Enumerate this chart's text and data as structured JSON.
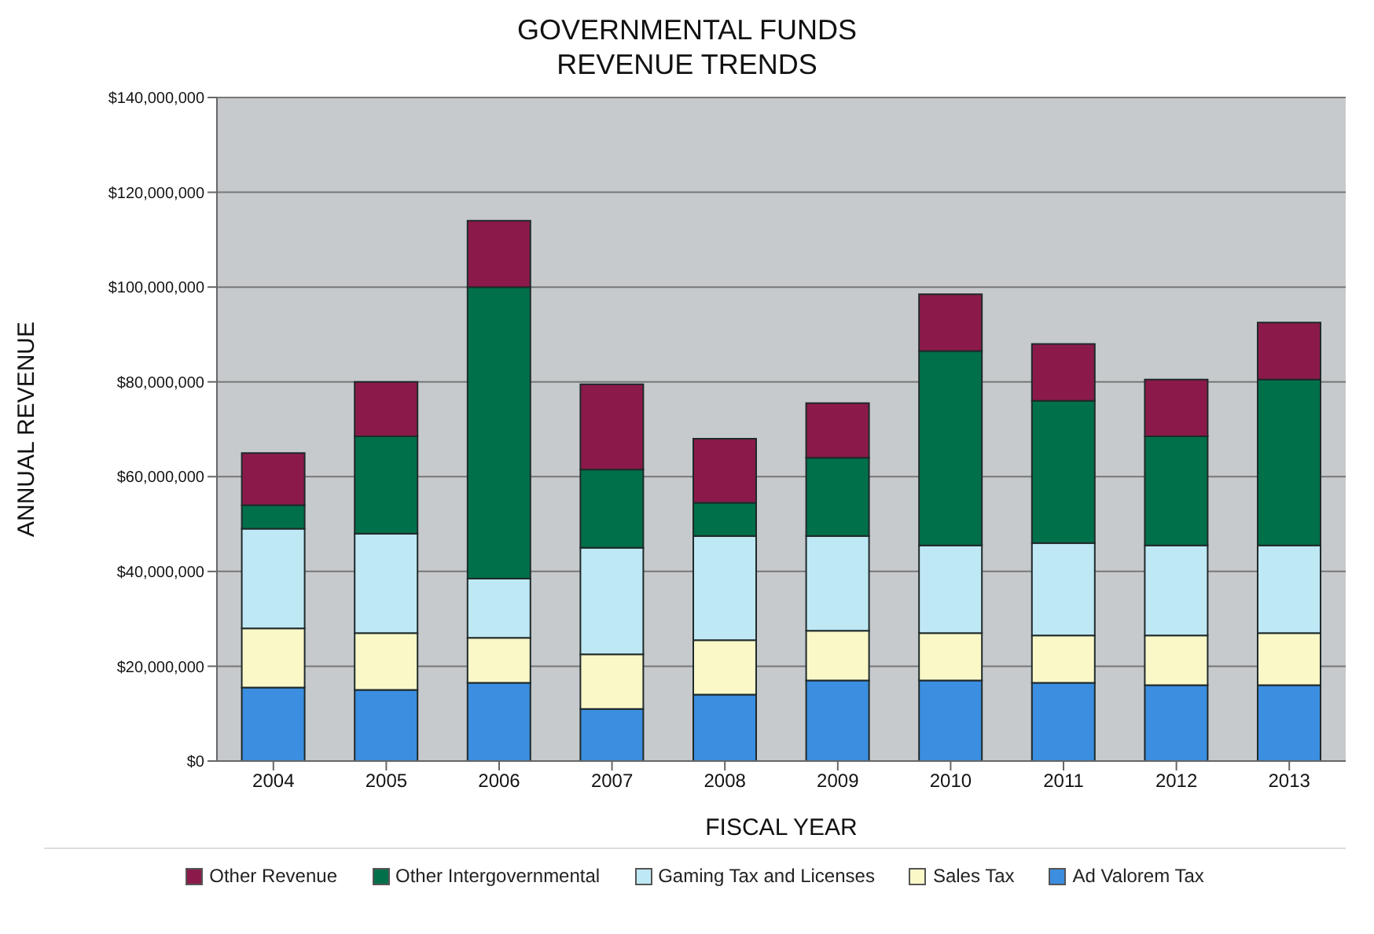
{
  "chart_data": {
    "type": "bar",
    "title": "GOVERNMENTAL FUNDS\nREVENUE TRENDS",
    "xlabel": "FISCAL YEAR",
    "ylabel": "ANNUAL REVENUE",
    "categories": [
      "2004",
      "2005",
      "2006",
      "2007",
      "2008",
      "2009",
      "2010",
      "2011",
      "2012",
      "2013"
    ],
    "stacked": true,
    "grid": "y",
    "legend": "bottom",
    "ylim": [
      0,
      140000000
    ],
    "yticks": [
      {
        "value": 0,
        "label": "$0"
      },
      {
        "value": 20000000,
        "label": "$20,000,000"
      },
      {
        "value": 40000000,
        "label": "$40,000,000"
      },
      {
        "value": 60000000,
        "label": "$60,000,000"
      },
      {
        "value": 80000000,
        "label": "$80,000,000"
      },
      {
        "value": 100000000,
        "label": "$100,000,000"
      },
      {
        "value": 120000000,
        "label": "$120,000,000"
      },
      {
        "value": 140000000,
        "label": "$140,000,000"
      }
    ],
    "series": [
      {
        "name": "Ad Valorem Tax",
        "color": "#3b8ee0",
        "values": [
          15500000,
          15000000,
          16500000,
          11000000,
          14000000,
          17000000,
          17000000,
          16500000,
          16000000,
          16000000
        ]
      },
      {
        "name": "Sales Tax",
        "color": "#fbf8c8",
        "values": [
          12500000,
          12000000,
          9500000,
          11500000,
          11500000,
          10500000,
          10000000,
          10000000,
          10500000,
          11000000
        ]
      },
      {
        "name": "Gaming Tax and Licenses",
        "color": "#bfe8f5",
        "values": [
          21000000,
          21000000,
          12500000,
          22500000,
          22000000,
          20000000,
          18500000,
          19500000,
          19000000,
          18500000
        ]
      },
      {
        "name": "Other Intergovernmental",
        "color": "#00704a",
        "values": [
          5000000,
          20500000,
          61500000,
          16500000,
          7000000,
          16500000,
          41000000,
          30000000,
          23000000,
          35000000
        ]
      },
      {
        "name": "Other Revenue",
        "color": "#8b1a4a",
        "values": [
          11000000,
          11500000,
          14000000,
          18000000,
          13500000,
          11500000,
          12000000,
          12000000,
          12000000,
          12000000
        ]
      }
    ]
  }
}
